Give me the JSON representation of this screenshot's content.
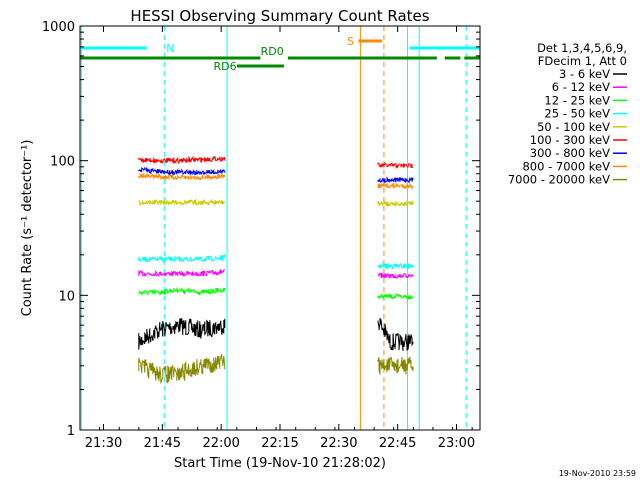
{
  "chart_data": {
    "type": "line",
    "title": "HESSI Observing Summary Count Rates",
    "xlabel": "Start Time (19-Nov-10 21:28:02)",
    "ylabel": "Count Rate (s⁻¹ detector⁻¹)",
    "y_scale": "log",
    "ylim": [
      1,
      1000
    ],
    "xlim": [
      "21:24",
      "23:06"
    ],
    "x_ticks": [
      "21:30",
      "21:45",
      "22:00",
      "22:15",
      "22:30",
      "22:45",
      "23:00"
    ],
    "y_ticks": [
      "1",
      "10",
      "100",
      "1000"
    ],
    "grid": false,
    "legend_position": "right",
    "legend_header": [
      "Det 1,3,4,5,6,9,",
      "FDecim 1, Att 0"
    ],
    "series": [
      {
        "name": "3 - 6 keV",
        "color": "#000000",
        "segments": [
          {
            "x": [
              "21:39",
              "21:44",
              "21:49",
              "21:55",
              "22:01"
            ],
            "y": [
              4.5,
              5.5,
              6.0,
              5.5,
              6.0
            ]
          },
          {
            "x": [
              "22:40",
              "22:43",
              "22:46",
              "22:49"
            ],
            "y": [
              6.5,
              4.5,
              4.5,
              4.5
            ]
          }
        ]
      },
      {
        "name": "6 - 12 keV",
        "color": "#ff00ff",
        "segments": [
          {
            "x": [
              "21:39",
              "21:44",
              "21:49",
              "21:55",
              "22:01"
            ],
            "y": [
              14.5,
              14.5,
              14.5,
              14.5,
              15.0
            ]
          },
          {
            "x": [
              "22:40",
              "22:43",
              "22:46",
              "22:49"
            ],
            "y": [
              14.0,
              14.0,
              14.0,
              14.0
            ]
          }
        ]
      },
      {
        "name": "12 - 25 keV",
        "color": "#00ff00",
        "segments": [
          {
            "x": [
              "21:39",
              "21:44",
              "21:49",
              "21:55",
              "22:01"
            ],
            "y": [
              10.5,
              10.5,
              11.0,
              10.5,
              11.0
            ]
          },
          {
            "x": [
              "22:40",
              "22:43",
              "22:46",
              "22:49"
            ],
            "y": [
              9.8,
              9.8,
              9.8,
              9.8
            ]
          }
        ]
      },
      {
        "name": "25 - 50 keV",
        "color": "#00ffff",
        "segments": [
          {
            "x": [
              "21:39",
              "21:44",
              "21:49",
              "21:55",
              "22:01"
            ],
            "y": [
              18.5,
              18.5,
              18.5,
              18.5,
              19.0
            ]
          },
          {
            "x": [
              "22:40",
              "22:43",
              "22:46",
              "22:49"
            ],
            "y": [
              16.5,
              16.5,
              16.5,
              16.5
            ]
          }
        ]
      },
      {
        "name": "50 - 100 keV",
        "color": "#cccc00",
        "segments": [
          {
            "x": [
              "21:39",
              "21:44",
              "21:49",
              "21:55",
              "22:01"
            ],
            "y": [
              49,
              49,
              49,
              49,
              49
            ]
          },
          {
            "x": [
              "22:40",
              "22:43",
              "22:46",
              "22:49"
            ],
            "y": [
              48,
              48,
              48,
              48
            ]
          }
        ]
      },
      {
        "name": "100 - 300 keV",
        "color": "#ff0000",
        "segments": [
          {
            "x": [
              "21:39",
              "21:44",
              "21:49",
              "21:55",
              "22:01"
            ],
            "y": [
              102,
              100,
              100,
              102,
              104
            ]
          },
          {
            "x": [
              "22:40",
              "22:43",
              "22:46",
              "22:49"
            ],
            "y": [
              92,
              92,
              92,
              92
            ]
          }
        ]
      },
      {
        "name": "300 - 800 keV",
        "color": "#0000ff",
        "segments": [
          {
            "x": [
              "21:39",
              "21:44",
              "21:49",
              "21:55",
              "22:01"
            ],
            "y": [
              86,
              83,
              82,
              82,
              83
            ]
          },
          {
            "x": [
              "22:40",
              "22:43",
              "22:46",
              "22:49"
            ],
            "y": [
              72,
              72,
              72,
              72
            ]
          }
        ]
      },
      {
        "name": "800 - 7000 keV",
        "color": "#ff8800",
        "segments": [
          {
            "x": [
              "21:39",
              "21:44",
              "21:49",
              "21:55",
              "22:01"
            ],
            "y": [
              78,
              76,
              75,
              75,
              77
            ]
          },
          {
            "x": [
              "22:40",
              "22:43",
              "22:46",
              "22:49"
            ],
            "y": [
              65,
              65,
              65,
              65
            ]
          }
        ]
      },
      {
        "name": "7000 - 20000 keV",
        "color": "#888800",
        "segments": [
          {
            "x": [
              "21:39",
              "21:44",
              "21:49",
              "21:55",
              "22:01"
            ],
            "y": [
              3.0,
              2.6,
              2.6,
              3.0,
              3.2
            ]
          },
          {
            "x": [
              "22:40",
              "22:43",
              "22:46",
              "22:49"
            ],
            "y": [
              3.0,
              3.0,
              3.0,
              3.0
            ]
          }
        ]
      }
    ],
    "time_markers": [
      {
        "t": "21:24:20",
        "color": "#00ffff",
        "style": "solid"
      },
      {
        "t": "21:45:30",
        "color": "#00ffff",
        "style": "dashed"
      },
      {
        "t": "22:01:30",
        "color": "#00ffff",
        "style": "solid"
      },
      {
        "t": "22:35:30",
        "color": "#ff8800",
        "style": "solid"
      },
      {
        "t": "22:41:30",
        "color": "#ff8800",
        "style": "dashed"
      },
      {
        "t": "22:47:30",
        "color": "#00ffff",
        "style": "solid"
      },
      {
        "t": "22:50:30",
        "color": "#00ffff",
        "style": "solid"
      },
      {
        "t": "23:02:30",
        "color": "#00ffff",
        "style": "dashed"
      }
    ],
    "flag_bars": [
      {
        "label": "N",
        "color": "#00ffff",
        "level": 1,
        "segments": [
          [
            "21:24",
            "21:41"
          ],
          [
            "22:48",
            "23:06"
          ]
        ]
      },
      {
        "label": "S",
        "color": "#ff8800",
        "level": 2,
        "segments": [
          [
            "22:35",
            "22:41"
          ]
        ]
      },
      {
        "label": "RD0",
        "color": "#008800",
        "level": 3,
        "segments": [
          [
            "21:24",
            "22:10"
          ],
          [
            "22:17",
            "22:55"
          ],
          [
            "22:57",
            "23:01"
          ],
          [
            "23:02",
            "23:06"
          ]
        ]
      },
      {
        "label": "RD6",
        "color": "#008800",
        "level": 4,
        "segments": [
          [
            "22:04",
            "22:16"
          ]
        ]
      }
    ],
    "footer_date": "19-Nov-2010 23:59"
  }
}
